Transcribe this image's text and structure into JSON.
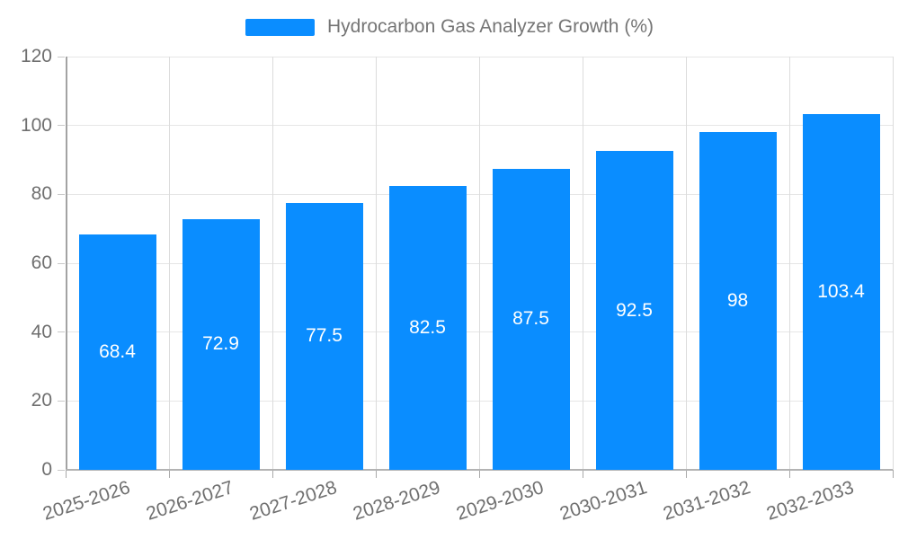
{
  "legend": {
    "label": "Hydrocarbon Gas Analyzer Growth (%)"
  },
  "chart_data": {
    "type": "bar",
    "title": "Hydrocarbon Gas Analyzer Growth (%)",
    "categories": [
      "2025-2026",
      "2026-2027",
      "2027-2028",
      "2028-2029",
      "2029-2030",
      "2030-2031",
      "2031-2032",
      "2032-2033"
    ],
    "series": [
      {
        "name": "Hydrocarbon Gas Analyzer Growth (%)",
        "values": [
          68.4,
          72.9,
          77.5,
          82.5,
          87.5,
          92.5,
          98,
          103.4
        ],
        "data_labels": [
          "68.4",
          "72.9",
          "77.5",
          "82.5",
          "87.5",
          "92.5",
          "98",
          "103.4"
        ]
      }
    ],
    "xlabel": "",
    "ylabel": "",
    "ylim": [
      0,
      120
    ],
    "yticks": [
      0,
      20,
      40,
      60,
      80,
      100,
      120
    ],
    "ytick_labels": [
      "0",
      "20",
      "40",
      "60",
      "80",
      "100",
      "120"
    ],
    "grid": true,
    "legend_position": "top-center",
    "data_label_position": "inside-center"
  },
  "colors": {
    "bar": "#0a8dff",
    "bar_label_text": "#ffffff",
    "legend_text": "#757575",
    "axis_tick_text": "#6f6f6f",
    "grid_line_horizontal": "#e6e6e6",
    "grid_line_vertical": "#dcdcdc",
    "axis_line": "#a9a9a9",
    "background": "#ffffff"
  }
}
